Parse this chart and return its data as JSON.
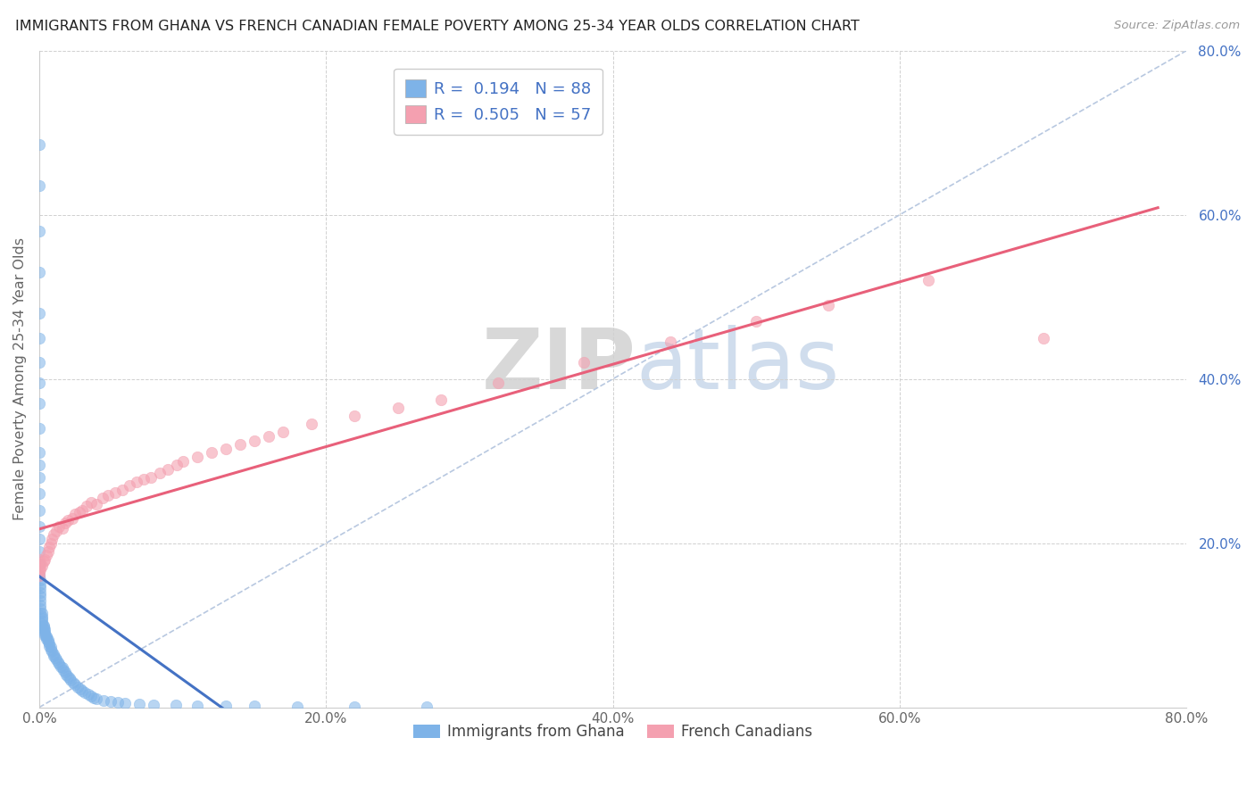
{
  "title": "IMMIGRANTS FROM GHANA VS FRENCH CANADIAN FEMALE POVERTY AMONG 25-34 YEAR OLDS CORRELATION CHART",
  "source": "Source: ZipAtlas.com",
  "ylabel": "Female Poverty Among 25-34 Year Olds",
  "xlim": [
    0.0,
    0.8
  ],
  "ylim": [
    0.0,
    0.8
  ],
  "xtick_labels": [
    "0.0%",
    "20.0%",
    "40.0%",
    "60.0%",
    "80.0%"
  ],
  "xtick_vals": [
    0.0,
    0.2,
    0.4,
    0.6,
    0.8
  ],
  "ytick_labels": [
    "20.0%",
    "40.0%",
    "60.0%",
    "80.0%"
  ],
  "ytick_vals": [
    0.2,
    0.4,
    0.6,
    0.8
  ],
  "r_ghana": 0.194,
  "n_ghana": 88,
  "r_french": 0.505,
  "n_french": 57,
  "color_ghana": "#7eb3e8",
  "color_french": "#f4a0b0",
  "line_color_ghana": "#4472c4",
  "line_color_french": "#e8607a",
  "legend_entries": [
    "Immigrants from Ghana",
    "French Canadians"
  ],
  "watermark_zip": "ZIP",
  "watermark_atlas": "atlas",
  "background_color": "#ffffff",
  "grid_color": "#d0d0d0",
  "ghana_x": [
    0.0,
    0.0,
    0.0,
    0.0,
    0.0,
    0.0,
    0.0,
    0.0,
    0.0,
    0.0,
    0.0,
    0.0,
    0.0,
    0.0,
    0.0,
    0.0,
    0.0,
    0.0,
    0.0,
    0.0,
    0.001,
    0.001,
    0.001,
    0.001,
    0.001,
    0.001,
    0.001,
    0.001,
    0.001,
    0.002,
    0.002,
    0.002,
    0.002,
    0.002,
    0.003,
    0.003,
    0.003,
    0.004,
    0.004,
    0.004,
    0.004,
    0.005,
    0.005,
    0.005,
    0.006,
    0.006,
    0.007,
    0.007,
    0.008,
    0.008,
    0.009,
    0.01,
    0.01,
    0.011,
    0.012,
    0.013,
    0.014,
    0.015,
    0.016,
    0.017,
    0.018,
    0.019,
    0.02,
    0.021,
    0.022,
    0.024,
    0.025,
    0.027,
    0.029,
    0.03,
    0.032,
    0.034,
    0.036,
    0.038,
    0.04,
    0.045,
    0.05,
    0.055,
    0.06,
    0.07,
    0.08,
    0.095,
    0.11,
    0.13,
    0.15,
    0.18,
    0.22,
    0.27
  ],
  "ghana_y": [
    0.685,
    0.635,
    0.58,
    0.53,
    0.48,
    0.45,
    0.42,
    0.395,
    0.37,
    0.34,
    0.31,
    0.295,
    0.28,
    0.26,
    0.24,
    0.22,
    0.205,
    0.19,
    0.175,
    0.16,
    0.155,
    0.15,
    0.145,
    0.14,
    0.135,
    0.13,
    0.125,
    0.12,
    0.115,
    0.115,
    0.11,
    0.108,
    0.105,
    0.102,
    0.1,
    0.098,
    0.095,
    0.095,
    0.092,
    0.09,
    0.088,
    0.087,
    0.085,
    0.083,
    0.082,
    0.08,
    0.078,
    0.075,
    0.073,
    0.07,
    0.068,
    0.065,
    0.063,
    0.06,
    0.058,
    0.055,
    0.053,
    0.05,
    0.048,
    0.045,
    0.043,
    0.04,
    0.038,
    0.035,
    0.033,
    0.03,
    0.028,
    0.025,
    0.022,
    0.02,
    0.018,
    0.016,
    0.014,
    0.012,
    0.01,
    0.008,
    0.007,
    0.006,
    0.005,
    0.004,
    0.003,
    0.003,
    0.002,
    0.002,
    0.002,
    0.001,
    0.001,
    0.001
  ],
  "french_x": [
    0.0,
    0.0,
    0.0,
    0.0,
    0.001,
    0.001,
    0.002,
    0.003,
    0.004,
    0.005,
    0.006,
    0.007,
    0.008,
    0.009,
    0.01,
    0.012,
    0.014,
    0.016,
    0.018,
    0.02,
    0.023,
    0.025,
    0.028,
    0.03,
    0.033,
    0.036,
    0.04,
    0.044,
    0.048,
    0.053,
    0.058,
    0.063,
    0.068,
    0.073,
    0.078,
    0.084,
    0.09,
    0.096,
    0.1,
    0.11,
    0.12,
    0.13,
    0.14,
    0.15,
    0.16,
    0.17,
    0.19,
    0.22,
    0.25,
    0.28,
    0.32,
    0.38,
    0.44,
    0.5,
    0.55,
    0.62,
    0.7
  ],
  "french_y": [
    0.18,
    0.17,
    0.165,
    0.16,
    0.175,
    0.168,
    0.172,
    0.178,
    0.18,
    0.185,
    0.19,
    0.195,
    0.2,
    0.205,
    0.21,
    0.215,
    0.22,
    0.218,
    0.225,
    0.228,
    0.23,
    0.235,
    0.238,
    0.24,
    0.245,
    0.25,
    0.248,
    0.255,
    0.258,
    0.262,
    0.265,
    0.27,
    0.275,
    0.278,
    0.28,
    0.285,
    0.29,
    0.295,
    0.3,
    0.305,
    0.31,
    0.315,
    0.32,
    0.325,
    0.33,
    0.335,
    0.345,
    0.355,
    0.365,
    0.375,
    0.395,
    0.42,
    0.445,
    0.47,
    0.49,
    0.52,
    0.45
  ]
}
